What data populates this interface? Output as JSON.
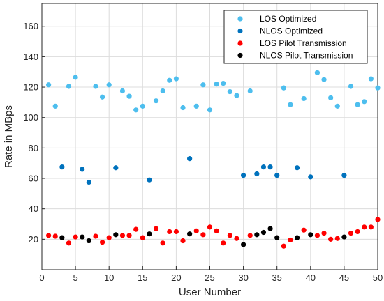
{
  "chart_data": {
    "type": "scatter",
    "title": "",
    "xlabel": "User Number",
    "ylabel": "Rate in MBps",
    "xlim": [
      0,
      50
    ],
    "ylim": [
      0,
      175
    ],
    "xticks": [
      0,
      5,
      10,
      15,
      20,
      25,
      30,
      35,
      40,
      45,
      50
    ],
    "yticks": [
      20,
      40,
      60,
      80,
      100,
      120,
      140,
      160
    ],
    "grid": true,
    "legend_position": "top-right",
    "series": [
      {
        "name": "LOS Optimized",
        "color": "#4DBEEE",
        "points": [
          [
            1,
            121.5
          ],
          [
            2,
            107.5
          ],
          [
            4,
            120.5
          ],
          [
            5,
            126.5
          ],
          [
            8,
            120.5
          ],
          [
            9,
            113.5
          ],
          [
            10,
            121.5
          ],
          [
            12,
            117.5
          ],
          [
            13,
            114
          ],
          [
            14,
            105
          ],
          [
            15,
            107.5
          ],
          [
            17,
            111
          ],
          [
            18,
            117.5
          ],
          [
            19,
            124.5
          ],
          [
            20,
            125.5
          ],
          [
            21,
            106.5
          ],
          [
            23,
            107.5
          ],
          [
            24,
            121.5
          ],
          [
            25,
            105
          ],
          [
            26,
            122
          ],
          [
            27,
            122.5
          ],
          [
            28,
            117
          ],
          [
            29,
            114.5
          ],
          [
            31,
            117.5
          ],
          [
            36,
            119.5
          ],
          [
            37,
            108.5
          ],
          [
            39,
            112.5
          ],
          [
            41,
            129.5
          ],
          [
            42,
            125
          ],
          [
            43,
            113
          ],
          [
            44,
            107.5
          ],
          [
            46,
            120.5
          ],
          [
            47,
            108.5
          ],
          [
            48,
            110.5
          ],
          [
            49,
            125.5
          ],
          [
            50,
            119.5
          ]
        ]
      },
      {
        "name": "NLOS Optimized",
        "color": "#0072BD",
        "points": [
          [
            3,
            67.5
          ],
          [
            6,
            66
          ],
          [
            7,
            57.5
          ],
          [
            11,
            67
          ],
          [
            16,
            59
          ],
          [
            22,
            73
          ],
          [
            30,
            62
          ],
          [
            32,
            63
          ],
          [
            33,
            67.5
          ],
          [
            34,
            67.5
          ],
          [
            35,
            62
          ],
          [
            38,
            67
          ],
          [
            40,
            61
          ],
          [
            45,
            62
          ]
        ]
      },
      {
        "name": "LOS Pilot Transmission",
        "color": "#FF0000",
        "points": [
          [
            1,
            22.5
          ],
          [
            2,
            22
          ],
          [
            4,
            17.5
          ],
          [
            5,
            21.5
          ],
          [
            8,
            22
          ],
          [
            9,
            18
          ],
          [
            10,
            21
          ],
          [
            12,
            22.5
          ],
          [
            13,
            22.5
          ],
          [
            14,
            26.5
          ],
          [
            15,
            21
          ],
          [
            17,
            27
          ],
          [
            18,
            17.5
          ],
          [
            19,
            25
          ],
          [
            20,
            25
          ],
          [
            21,
            19
          ],
          [
            23,
            25.5
          ],
          [
            24,
            23
          ],
          [
            25,
            28
          ],
          [
            26,
            25.5
          ],
          [
            27,
            17.5
          ],
          [
            28,
            22.5
          ],
          [
            29,
            20.5
          ],
          [
            31,
            22.5
          ],
          [
            36,
            15.5
          ],
          [
            37,
            19.5
          ],
          [
            39,
            26
          ],
          [
            41,
            22.5
          ],
          [
            42,
            24
          ],
          [
            43,
            20
          ],
          [
            44,
            20.5
          ],
          [
            46,
            24
          ],
          [
            47,
            25
          ],
          [
            48,
            28
          ],
          [
            49,
            28
          ],
          [
            50,
            33
          ]
        ]
      },
      {
        "name": "NLOS Pilot Transmission",
        "color": "#000000",
        "points": [
          [
            3,
            21
          ],
          [
            6,
            21.5
          ],
          [
            7,
            19
          ],
          [
            11,
            23
          ],
          [
            16,
            23.5
          ],
          [
            22,
            23.5
          ],
          [
            30,
            16.5
          ],
          [
            32,
            23
          ],
          [
            33,
            24.5
          ],
          [
            34,
            27
          ],
          [
            35,
            21
          ],
          [
            38,
            21
          ],
          [
            40,
            23
          ],
          [
            45,
            21.5
          ]
        ]
      }
    ]
  }
}
